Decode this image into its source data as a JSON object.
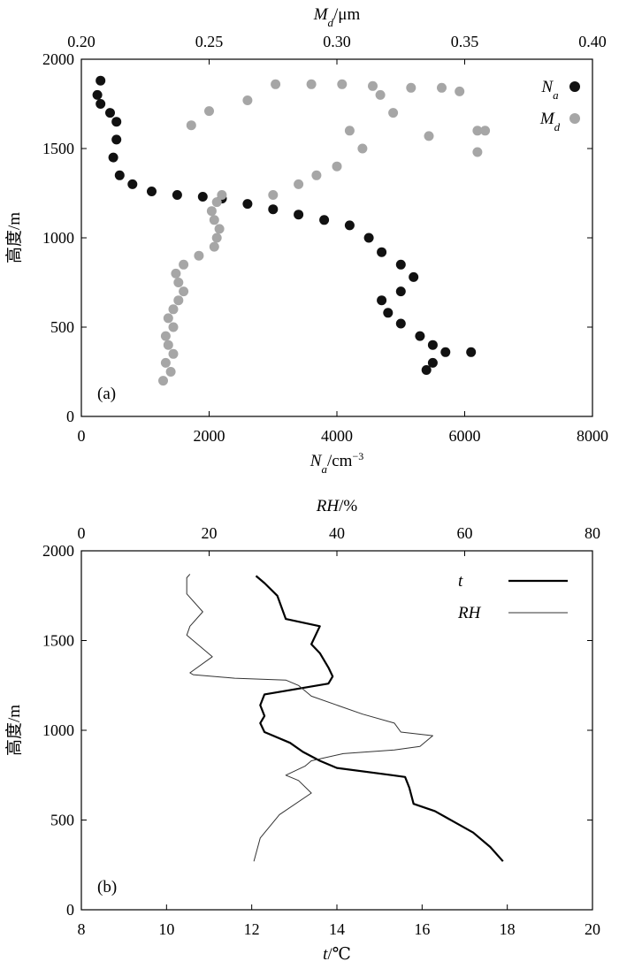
{
  "chart_data": [
    {
      "panel_label": "(a)",
      "type": "scatter",
      "ylabel": "高度/m",
      "ylim": [
        0,
        2000
      ],
      "yticks": [
        "0",
        "500",
        "1000",
        "1500",
        "2000"
      ],
      "xlabel_bottom": "N",
      "xlabel_bottom_sub": "a",
      "xlabel_bottom_unit": "/cm",
      "xlabel_bottom_exp": "−3",
      "xlim_bottom": [
        0,
        8000
      ],
      "xticks_bottom": [
        "0",
        "2000",
        "4000",
        "6000",
        "8000"
      ],
      "xlabel_top": "M",
      "xlabel_top_sub": "d",
      "xlabel_top_unit": "/μm",
      "xlim_top": [
        0.2,
        0.4
      ],
      "xticks_top": [
        "0.20",
        "0.25",
        "0.30",
        "0.35",
        "0.40"
      ],
      "legend_position": "top-right",
      "series": [
        {
          "name": "N",
          "name_sub": "a",
          "axis": "bottom",
          "color": "#111111",
          "points": [
            [
              300,
              1880
            ],
            [
              250,
              1800
            ],
            [
              300,
              1750
            ],
            [
              450,
              1700
            ],
            [
              550,
              1650
            ],
            [
              550,
              1550
            ],
            [
              500,
              1450
            ],
            [
              600,
              1350
            ],
            [
              800,
              1300
            ],
            [
              1100,
              1260
            ],
            [
              1500,
              1240
            ],
            [
              1900,
              1230
            ],
            [
              2200,
              1220
            ],
            [
              2600,
              1190
            ],
            [
              3000,
              1160
            ],
            [
              3400,
              1130
            ],
            [
              3800,
              1100
            ],
            [
              4200,
              1070
            ],
            [
              4500,
              1000
            ],
            [
              4700,
              920
            ],
            [
              5000,
              850
            ],
            [
              5200,
              780
            ],
            [
              5000,
              700
            ],
            [
              4700,
              650
            ],
            [
              4800,
              580
            ],
            [
              5000,
              520
            ],
            [
              5300,
              450
            ],
            [
              5500,
              400
            ],
            [
              5700,
              360
            ],
            [
              6100,
              360
            ],
            [
              5500,
              300
            ],
            [
              5400,
              260
            ]
          ]
        },
        {
          "name": "M",
          "name_sub": "d",
          "axis": "top",
          "color": "#a6a6a6",
          "points": [
            [
              0.232,
              200
            ],
            [
              0.235,
              250
            ],
            [
              0.233,
              300
            ],
            [
              0.236,
              350
            ],
            [
              0.234,
              400
            ],
            [
              0.233,
              450
            ],
            [
              0.236,
              500
            ],
            [
              0.234,
              550
            ],
            [
              0.236,
              600
            ],
            [
              0.238,
              650
            ],
            [
              0.24,
              700
            ],
            [
              0.238,
              750
            ],
            [
              0.237,
              800
            ],
            [
              0.24,
              850
            ],
            [
              0.246,
              900
            ],
            [
              0.252,
              950
            ],
            [
              0.253,
              1000
            ],
            [
              0.254,
              1050
            ],
            [
              0.252,
              1100
            ],
            [
              0.251,
              1150
            ],
            [
              0.253,
              1200
            ],
            [
              0.255,
              1240
            ],
            [
              0.275,
              1240
            ],
            [
              0.285,
              1300
            ],
            [
              0.292,
              1350
            ],
            [
              0.3,
              1400
            ],
            [
              0.31,
              1500
            ],
            [
              0.305,
              1600
            ],
            [
              0.317,
              1800
            ],
            [
              0.329,
              1840
            ],
            [
              0.341,
              1840
            ],
            [
              0.348,
              1820
            ],
            [
              0.355,
              1600
            ],
            [
              0.358,
              1600
            ],
            [
              0.355,
              1480
            ],
            [
              0.243,
              1630
            ],
            [
              0.25,
              1710
            ],
            [
              0.265,
              1770
            ],
            [
              0.276,
              1860
            ],
            [
              0.29,
              1860
            ],
            [
              0.302,
              1860
            ],
            [
              0.314,
              1850
            ],
            [
              0.322,
              1700
            ],
            [
              0.336,
              1570
            ]
          ]
        }
      ]
    },
    {
      "panel_label": "(b)",
      "type": "line",
      "ylabel": "高度/m",
      "ylim": [
        0,
        2000
      ],
      "yticks": [
        "0",
        "500",
        "1000",
        "1500",
        "2000"
      ],
      "xlabel_bottom": "t",
      "xlabel_bottom_unit": "/℃",
      "xlim_bottom": [
        8,
        20
      ],
      "xticks_bottom": [
        "8",
        "10",
        "12",
        "14",
        "16",
        "18",
        "20"
      ],
      "xlabel_top": "RH",
      "xlabel_top_unit": "/%",
      "xlim_top": [
        0,
        80
      ],
      "xticks_top": [
        "0",
        "20",
        "40",
        "60",
        "80"
      ],
      "legend_position": "top-right",
      "series": [
        {
          "name": "t",
          "axis": "bottom",
          "color": "#000000",
          "width": 2.2,
          "points": [
            [
              12.1,
              1860
            ],
            [
              12.3,
              1820
            ],
            [
              12.6,
              1750
            ],
            [
              12.8,
              1620
            ],
            [
              13.6,
              1580
            ],
            [
              13.4,
              1480
            ],
            [
              13.6,
              1430
            ],
            [
              13.8,
              1350
            ],
            [
              13.9,
              1300
            ],
            [
              13.8,
              1260
            ],
            [
              12.3,
              1200
            ],
            [
              12.2,
              1140
            ],
            [
              12.3,
              1080
            ],
            [
              12.2,
              1040
            ],
            [
              12.3,
              990
            ],
            [
              12.9,
              930
            ],
            [
              13.2,
              880
            ],
            [
              13.6,
              830
            ],
            [
              14.0,
              790
            ],
            [
              15.3,
              750
            ],
            [
              15.6,
              740
            ],
            [
              15.7,
              680
            ],
            [
              15.8,
              590
            ],
            [
              16.3,
              550
            ],
            [
              17.2,
              430
            ],
            [
              17.6,
              350
            ],
            [
              17.9,
              270
            ]
          ]
        },
        {
          "name": "RH",
          "axis": "top",
          "color": "#333333",
          "width": 1,
          "points": [
            [
              17,
              1870
            ],
            [
              16.5,
              1850
            ],
            [
              16.5,
              1760
            ],
            [
              19,
              1660
            ],
            [
              17,
              1580
            ],
            [
              16.5,
              1530
            ],
            [
              20.5,
              1410
            ],
            [
              17,
              1320
            ],
            [
              17.5,
              1310
            ],
            [
              24,
              1290
            ],
            [
              32,
              1280
            ],
            [
              34,
              1250
            ],
            [
              36,
              1190
            ],
            [
              44,
              1090
            ],
            [
              49,
              1040
            ],
            [
              50,
              990
            ],
            [
              55,
              970
            ],
            [
              53,
              910
            ],
            [
              49,
              890
            ],
            [
              41,
              870
            ],
            [
              36,
              830
            ],
            [
              35,
              800
            ],
            [
              32,
              750
            ],
            [
              34,
              720
            ],
            [
              36,
              650
            ],
            [
              31,
              530
            ],
            [
              28,
              400
            ],
            [
              27,
              270
            ]
          ]
        }
      ]
    }
  ]
}
